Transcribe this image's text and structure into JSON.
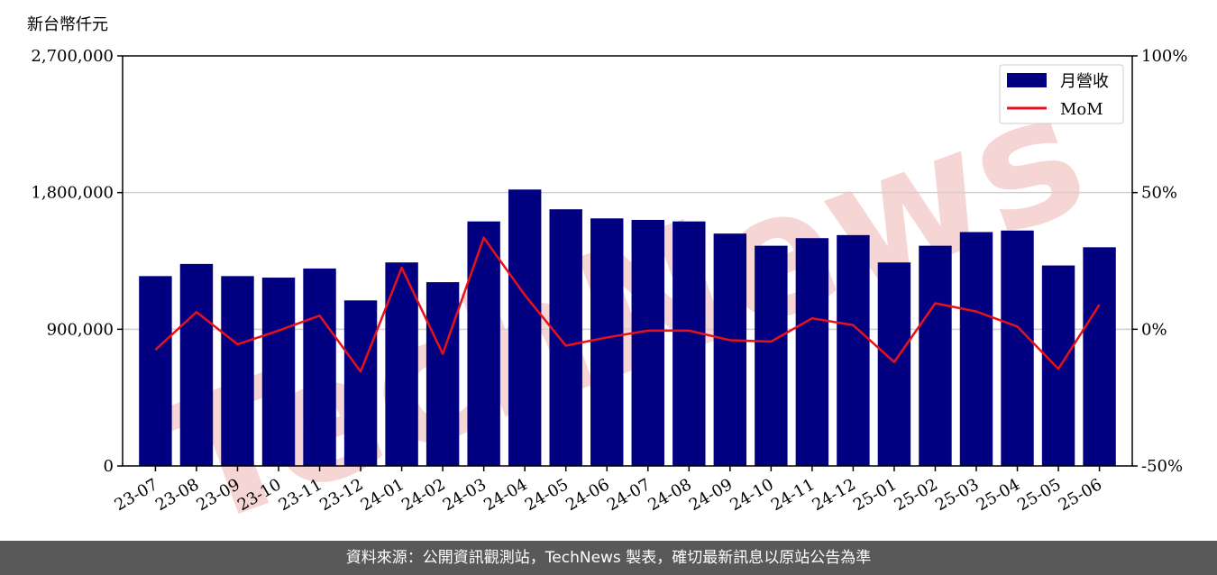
{
  "colors": {
    "bar": "#000080",
    "line": "#e8101a",
    "watermark": "#f6d5d5",
    "grid": "#cfcfcf",
    "footer_bg": "#595959"
  },
  "footer": {
    "text": "資料來源：公開資訊觀測站，TechNews 製表，確切最新訊息以原站公告為準"
  },
  "watermark": {
    "text": "TechNews"
  },
  "chart_data": {
    "type": "bar",
    "y_unit_label": "新台幣仟元",
    "categories": [
      "23-07",
      "23-08",
      "23-09",
      "23-10",
      "23-11",
      "23-12",
      "24-01",
      "24-02",
      "24-03",
      "24-04",
      "24-05",
      "24-06",
      "24-07",
      "24-08",
      "24-09",
      "24-10",
      "24-11",
      "24-12",
      "25-01",
      "25-02",
      "25-03",
      "25-04",
      "25-05",
      "25-06"
    ],
    "series": [
      {
        "name": "月營收",
        "kind": "bar",
        "axis": "left",
        "values": [
          1250000,
          1330000,
          1250000,
          1240000,
          1300000,
          1090000,
          1340000,
          1210000,
          1610000,
          1820000,
          1690000,
          1630000,
          1620000,
          1610000,
          1530000,
          1450000,
          1500000,
          1520000,
          1340000,
          1450000,
          1540000,
          1550000,
          1320000,
          1440000
        ]
      },
      {
        "name": "MoM",
        "kind": "line",
        "axis": "right",
        "values": [
          -7.5,
          6.3,
          -5.5,
          -0.5,
          5.0,
          -15.5,
          22.5,
          -9.0,
          33.5,
          12.5,
          -6.0,
          -3.0,
          -0.5,
          -0.5,
          -4.0,
          -4.5,
          4.0,
          1.5,
          -12.0,
          9.5,
          6.5,
          1.0,
          -14.5,
          9.0
        ]
      }
    ],
    "ylim_left": [
      0,
      2700000
    ],
    "ylim_right": [
      -50,
      100
    ],
    "yticks_left": [
      "0",
      "900,000",
      "1,800,000",
      "2,700,000"
    ],
    "yticks_right": [
      "-50%",
      "0%",
      "50%",
      "100%"
    ],
    "grid": "horizontal",
    "legend": "top-right"
  }
}
